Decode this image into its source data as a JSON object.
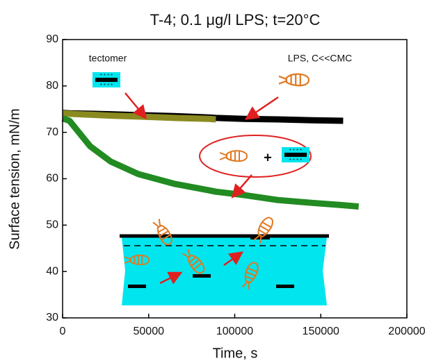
{
  "chart_data": {
    "type": "line",
    "title": "T-4; 0.1 μg/l LPS; t=20°C",
    "x_label": "Time, s",
    "y_label": "Surface tension, mN/m",
    "x": [
      0,
      4000,
      16000,
      28000,
      44000,
      65000,
      85000,
      89000,
      105000,
      125000,
      145000,
      163000,
      172000
    ],
    "series": [
      {
        "name": "LPS, C<<CMC",
        "color": "#000000",
        "values": [
          74.2,
          74.1,
          74,
          73.9,
          73.7,
          73.5,
          73.2,
          73.1,
          72.9,
          72.8,
          72.6,
          72.5,
          null
        ]
      },
      {
        "name": "tectomer",
        "color": "#8a8a20",
        "values": [
          74.1,
          74,
          73.8,
          73.6,
          73.4,
          73.1,
          72.9,
          72.8,
          null,
          null,
          null,
          null,
          null
        ]
      },
      {
        "color": "#228b22",
        "values": [
          73,
          72.5,
          67,
          63.7,
          61,
          58.9,
          57.5,
          57.2,
          56.5,
          55.4,
          54.8,
          54.3,
          54
        ]
      }
    ],
    "annotations": [
      "+"
    ],
    "xlim": [
      0,
      200000
    ],
    "xticks": [
      0,
      50000,
      100000,
      150000,
      200000
    ],
    "ylim": [
      30,
      90
    ],
    "yticks": [
      30,
      40,
      50,
      60,
      70,
      80,
      90
    ],
    "grid": false
  }
}
